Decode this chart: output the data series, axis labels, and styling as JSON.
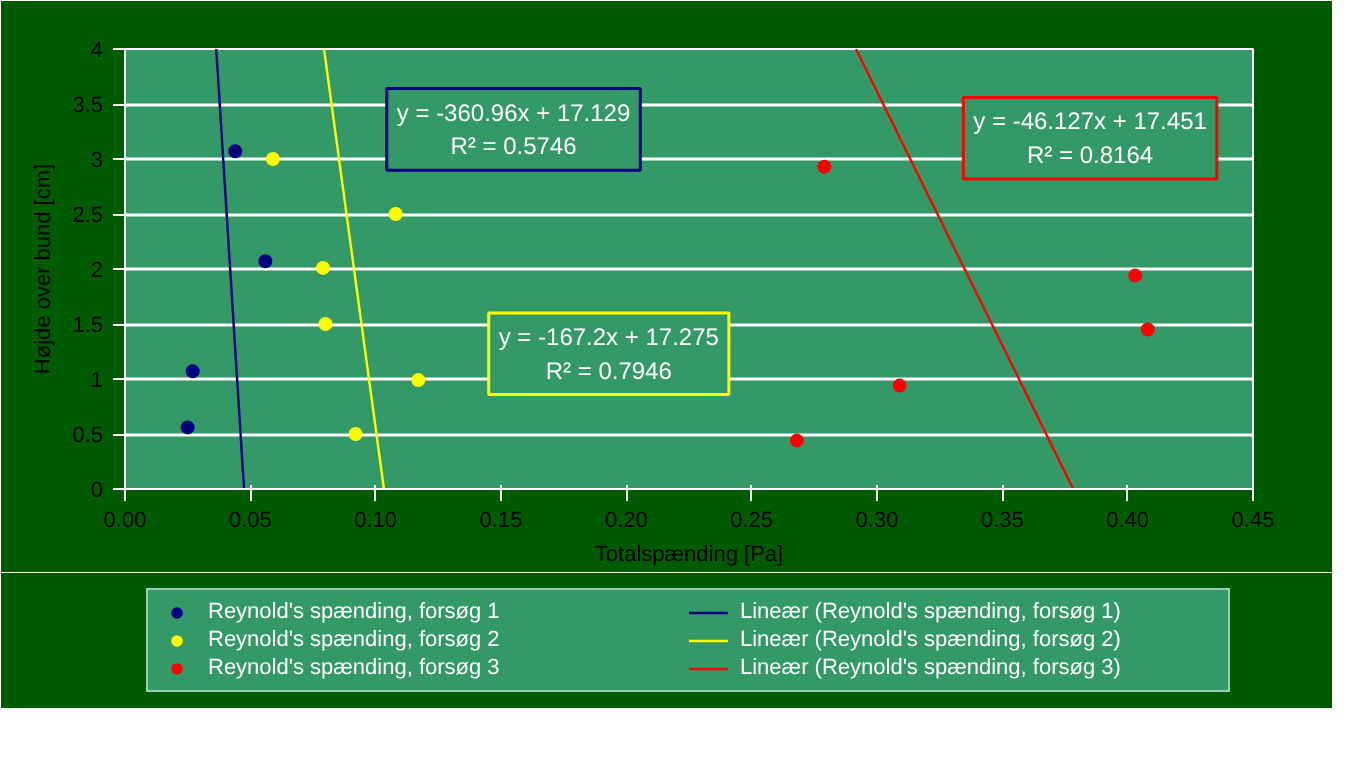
{
  "chart_data": {
    "type": "scatter",
    "xlabel": "Totalspænding [Pa]",
    "ylabel": "Højde over bund [cm]",
    "xlim": [
      0,
      0.45
    ],
    "ylim": [
      0,
      4
    ],
    "xticks": [
      {
        "value": 0,
        "label": "0.00"
      },
      {
        "value": 0.05,
        "label": "0.05"
      },
      {
        "value": 0.1,
        "label": "0.10"
      },
      {
        "value": 0.15,
        "label": "0.15"
      },
      {
        "value": 0.2,
        "label": "0.20"
      },
      {
        "value": 0.25,
        "label": "0.25"
      },
      {
        "value": 0.3,
        "label": "0.30"
      },
      {
        "value": 0.35,
        "label": "0.35"
      },
      {
        "value": 0.4,
        "label": "0.40"
      },
      {
        "value": 0.45,
        "label": "0.45"
      }
    ],
    "yticks": [
      0,
      0.5,
      1,
      1.5,
      2,
      2.5,
      3,
      3.5,
      4
    ],
    "grid": "y",
    "legend": "bottom",
    "marker": "circle",
    "series": [
      {
        "name": "Reynold's spænding, forsøg 1",
        "color": "#000080",
        "x": [
          0.044,
          0.056,
          0.027,
          0.025
        ],
        "values": [
          3.07,
          2.07,
          1.07,
          0.56
        ]
      },
      {
        "name": "Reynold's spænding, forsøg 2",
        "color": "#ffff00",
        "x": [
          0.059,
          0.108,
          0.079,
          0.08,
          0.117,
          0.092
        ],
        "values": [
          3.0,
          2.5,
          2.01,
          1.5,
          0.99,
          0.5
        ]
      },
      {
        "name": "Reynold's spænding, forsøg 3",
        "color": "#ff0000",
        "x": [
          0.279,
          0.403,
          0.408,
          0.309,
          0.268
        ],
        "values": [
          2.93,
          1.94,
          1.45,
          0.94,
          0.44
        ]
      },
      {
        "name": "Lineær (Reynold's spænding, forsøg 1)",
        "color": "#000080",
        "type": "line",
        "marker": "none",
        "x": [
          0.0364,
          0.0475
        ],
        "values": [
          4,
          0
        ]
      },
      {
        "name": "Lineær (Reynold's spænding, forsøg 2)",
        "color": "#ffff00",
        "type": "line",
        "marker": "none",
        "x": [
          0.0794,
          0.1033
        ],
        "values": [
          4,
          0
        ]
      },
      {
        "name": "Lineær (Reynold's spænding, forsøg 3)",
        "color": "#ff0000",
        "type": "line",
        "marker": "none",
        "x": [
          0.2916,
          0.3783
        ],
        "values": [
          4,
          0
        ]
      }
    ],
    "annotations": [
      "y = -360.96x + 17.129\nR² = 0.5746",
      "y = -167.2x + 17.275\nR² = 0.7946",
      "y = -46.127x + 17.451\nR² = 0.8164"
    ]
  }
}
